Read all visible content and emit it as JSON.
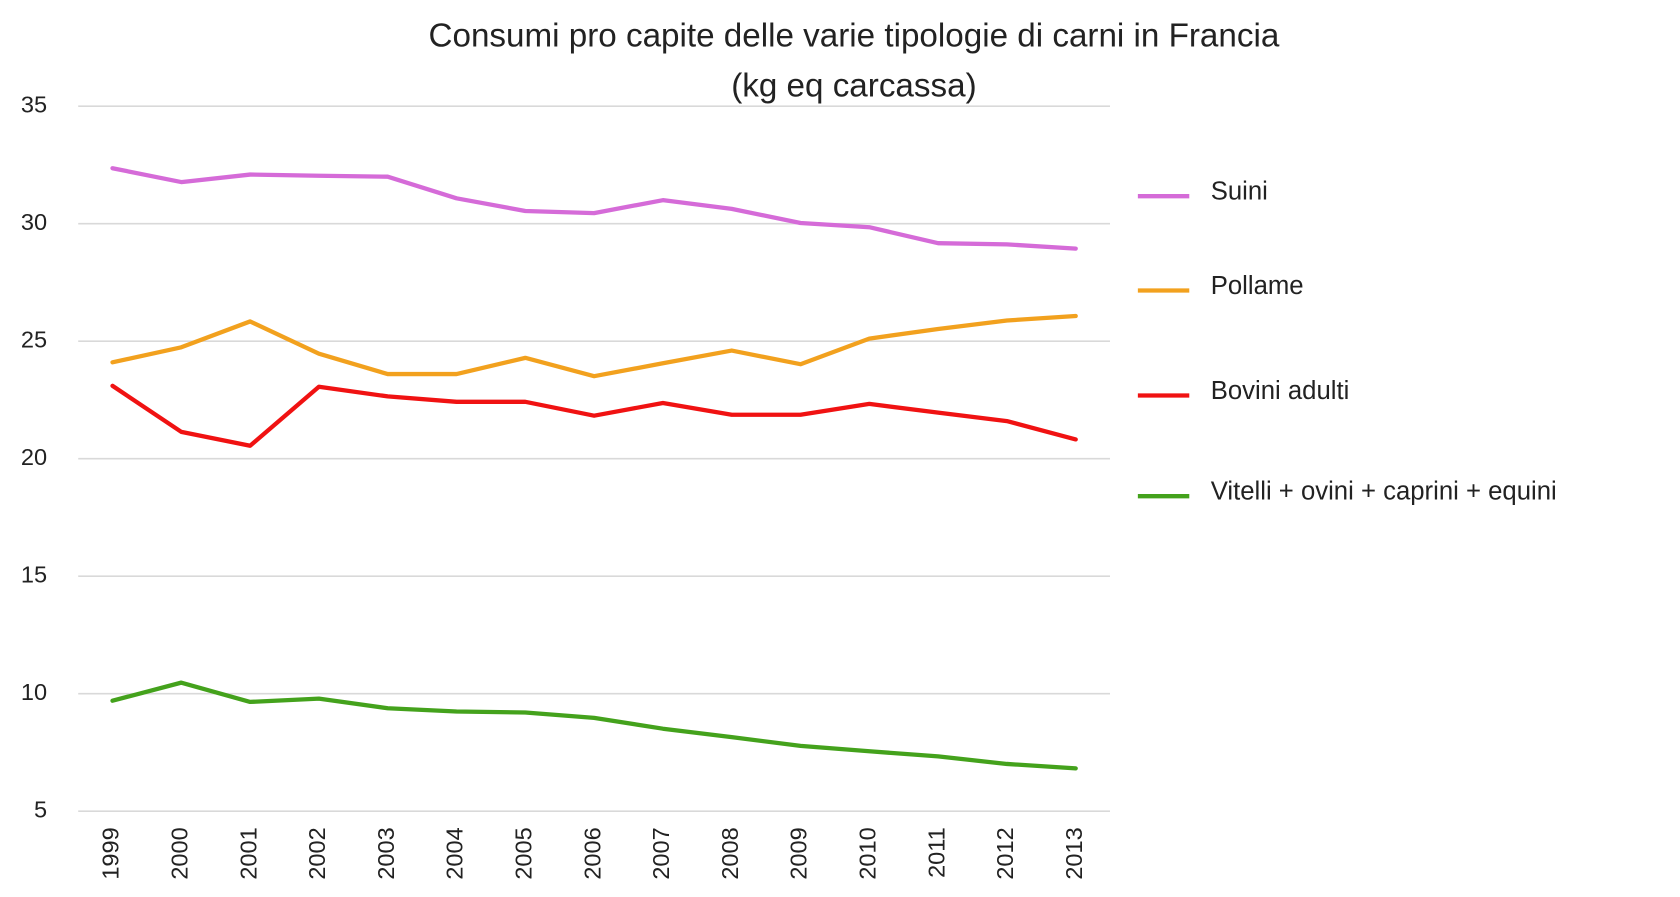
{
  "chart_data": {
    "type": "line",
    "title": "Consumi pro capite delle varie tipologie di carni in Francia",
    "subtitle": "(kg eq carcassa)",
    "categories": [
      "1999",
      "2000",
      "2001",
      "2002",
      "2003",
      "2004",
      "2005",
      "2006",
      "2007",
      "2008",
      "2009",
      "2010",
      "2011",
      "2012",
      "2013"
    ],
    "series": [
      {
        "name": "Suini",
        "color": "#d56bd8",
        "values": [
          32.36,
          31.77,
          32.09,
          32.04,
          32.0,
          31.08,
          30.54,
          30.45,
          31.0,
          30.63,
          30.03,
          29.85,
          29.17,
          29.12,
          28.94
        ]
      },
      {
        "name": "Pollame",
        "color": "#f2a11e",
        "values": [
          24.1,
          24.74,
          25.84,
          24.47,
          23.6,
          23.6,
          24.29,
          23.51,
          24.06,
          24.6,
          24.02,
          25.11,
          25.52,
          25.88,
          26.07
        ]
      },
      {
        "name": "Bovini adulti",
        "color": "#f01212",
        "values": [
          23.1,
          21.14,
          20.55,
          23.06,
          22.65,
          22.42,
          22.42,
          21.83,
          22.37,
          21.87,
          21.87,
          22.33,
          21.96,
          21.6,
          20.82
        ]
      },
      {
        "name": "Vitelli + ovini + caprini + equini",
        "color": "#44a21c",
        "values": [
          9.7,
          10.47,
          9.65,
          9.79,
          9.38,
          9.24,
          9.2,
          8.97,
          8.51,
          8.15,
          7.78,
          7.55,
          7.33,
          7.01,
          6.82
        ]
      }
    ],
    "ylim": [
      5,
      35
    ],
    "yticks": [
      5,
      10,
      15,
      20,
      25,
      30,
      35
    ],
    "grid": true,
    "legend": "right"
  }
}
